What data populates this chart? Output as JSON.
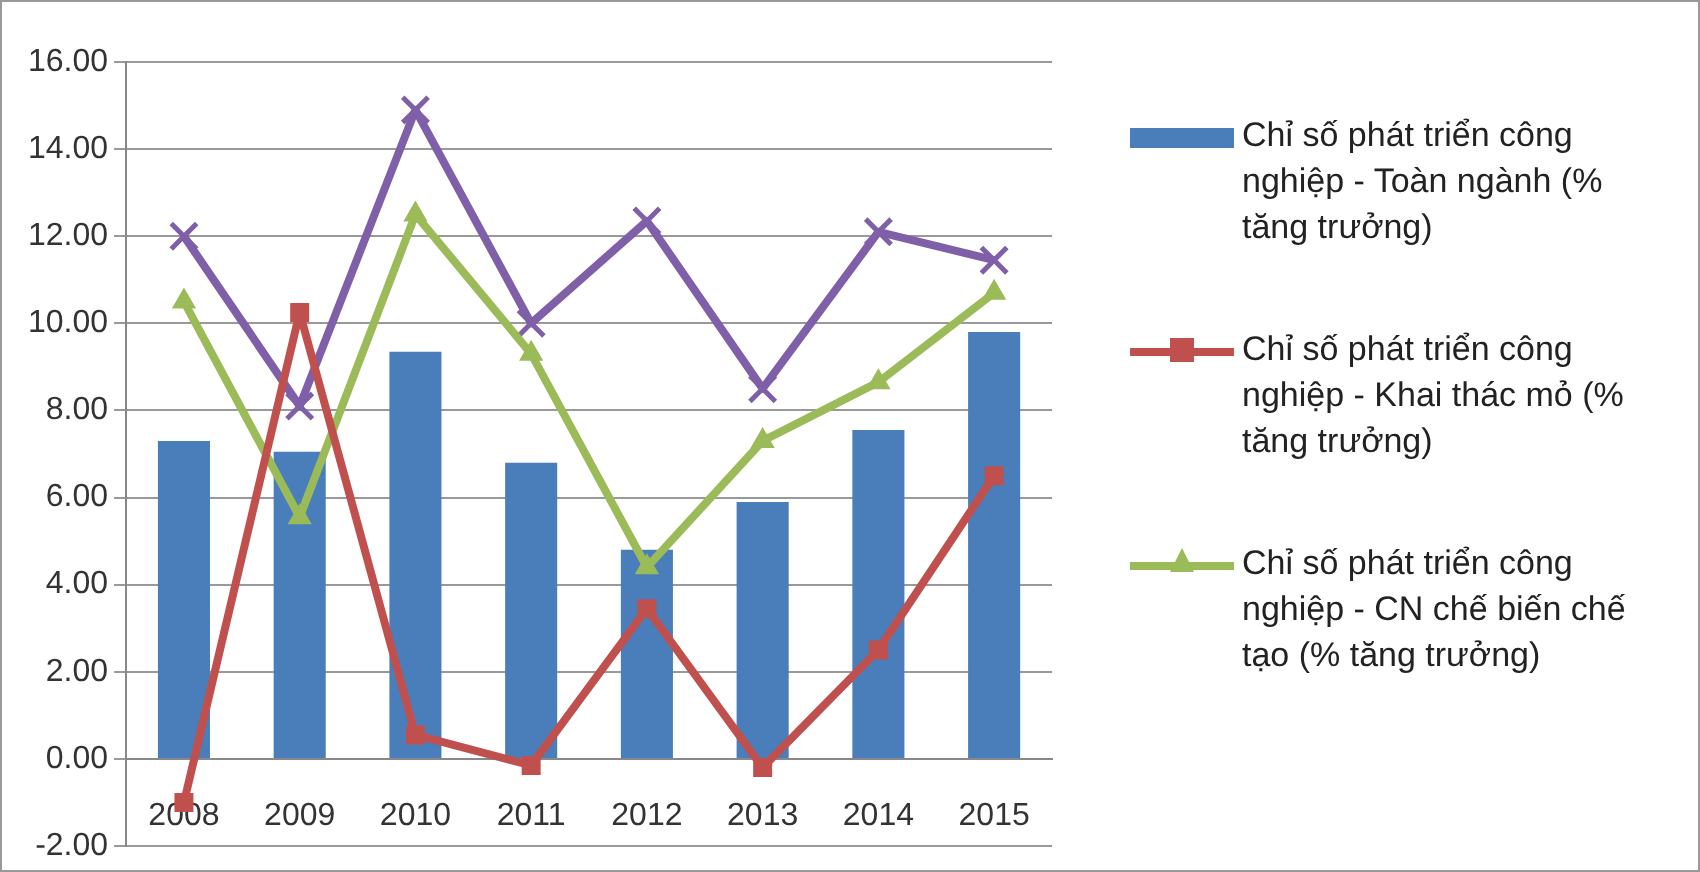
{
  "chart_data": {
    "type": "bar",
    "categories": [
      "2008",
      "2009",
      "2010",
      "2011",
      "2012",
      "2013",
      "2014",
      "2015"
    ],
    "series": [
      {
        "name": "Chỉ số phát triển công nghiệp - Toàn ngành (% tăng trưởng)",
        "type": "bar",
        "color": "#4a7ebb",
        "values": [
          7.3,
          7.05,
          9.35,
          6.8,
          4.8,
          5.9,
          7.55,
          9.8
        ]
      },
      {
        "name": "Chỉ số phát triển công nghiệp - Khai thác mỏ (% tăng trưởng)",
        "type": "line",
        "color": "#c0504d",
        "marker": "square",
        "values": [
          -1.0,
          10.25,
          0.55,
          -0.15,
          3.45,
          -0.2,
          2.5,
          6.5
        ]
      },
      {
        "name": "Chỉ số phát triển công nghiệp - CN chế biến chế tạo (% tăng trưởng)",
        "type": "line",
        "color": "#9bbb59",
        "marker": "triangle",
        "values": [
          10.5,
          5.55,
          12.5,
          9.3,
          4.4,
          7.3,
          8.65,
          10.7
        ]
      },
      {
        "type": "line",
        "color": "#7f5fa8",
        "marker": "cross",
        "values": [
          12.0,
          8.1,
          14.9,
          10.0,
          12.35,
          8.5,
          12.1,
          11.45
        ]
      }
    ],
    "ylim": [
      -2,
      16
    ],
    "yticks": [
      {
        "value": -2,
        "label": "-2.00"
      },
      {
        "value": 0,
        "label": "0.00"
      },
      {
        "value": 2,
        "label": "2.00"
      },
      {
        "value": 4,
        "label": "4.00"
      },
      {
        "value": 6,
        "label": "6.00"
      },
      {
        "value": 8,
        "label": "8.00"
      },
      {
        "value": 10,
        "label": "10.00"
      },
      {
        "value": 12,
        "label": "12.00"
      },
      {
        "value": 14,
        "label": "14.00"
      },
      {
        "value": 16,
        "label": "16.00"
      }
    ],
    "grid": "y",
    "legend": "right"
  }
}
